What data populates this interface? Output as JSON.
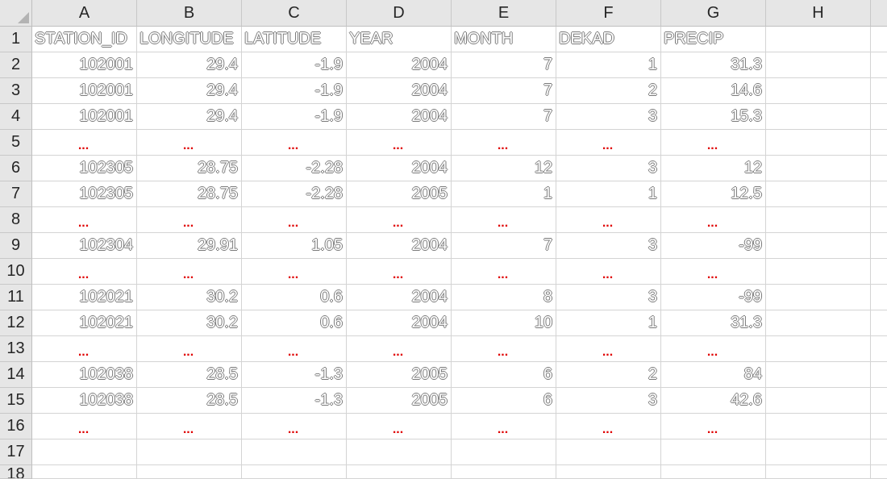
{
  "columns": [
    "A",
    "B",
    "C",
    "D",
    "E",
    "F",
    "G",
    "H"
  ],
  "rows": [
    "1",
    "2",
    "3",
    "4",
    "5",
    "6",
    "7",
    "8",
    "9",
    "10",
    "11",
    "12",
    "13",
    "14",
    "15",
    "16",
    "17",
    "18"
  ],
  "header_row": [
    "STATION_ID",
    "LONGITUDE",
    "LATITUDE",
    "YEAR",
    "MONTH",
    "DEKAD",
    "PRECIP"
  ],
  "ellipsis": "...",
  "data_rows": [
    {
      "row": "2",
      "cells": [
        "102001",
        "29.4",
        "-1.9",
        "2004",
        "7",
        "1",
        "31.3"
      ]
    },
    {
      "row": "3",
      "cells": [
        "102001",
        "29.4",
        "-1.9",
        "2004",
        "7",
        "2",
        "14.6"
      ]
    },
    {
      "row": "4",
      "cells": [
        "102001",
        "29.4",
        "-1.9",
        "2004",
        "7",
        "3",
        "15.3"
      ]
    },
    {
      "row": "6",
      "cells": [
        "102305",
        "28.75",
        "-2.28",
        "2004",
        "12",
        "3",
        "12"
      ]
    },
    {
      "row": "7",
      "cells": [
        "102305",
        "28.75",
        "-2.28",
        "2005",
        "1",
        "1",
        "12.5"
      ]
    },
    {
      "row": "9",
      "cells": [
        "102304",
        "29.91",
        "1.05",
        "2004",
        "7",
        "3",
        "-99"
      ]
    },
    {
      "row": "11",
      "cells": [
        "102021",
        "30.2",
        "0.6",
        "2004",
        "8",
        "3",
        "-99"
      ]
    },
    {
      "row": "12",
      "cells": [
        "102021",
        "30.2",
        "0.6",
        "2004",
        "10",
        "1",
        "31.3"
      ]
    },
    {
      "row": "14",
      "cells": [
        "102038",
        "28.5",
        "-1.3",
        "2005",
        "6",
        "2",
        "84"
      ]
    },
    {
      "row": "15",
      "cells": [
        "102038",
        "28.5",
        "-1.3",
        "2005",
        "6",
        "3",
        "42.6"
      ]
    }
  ]
}
